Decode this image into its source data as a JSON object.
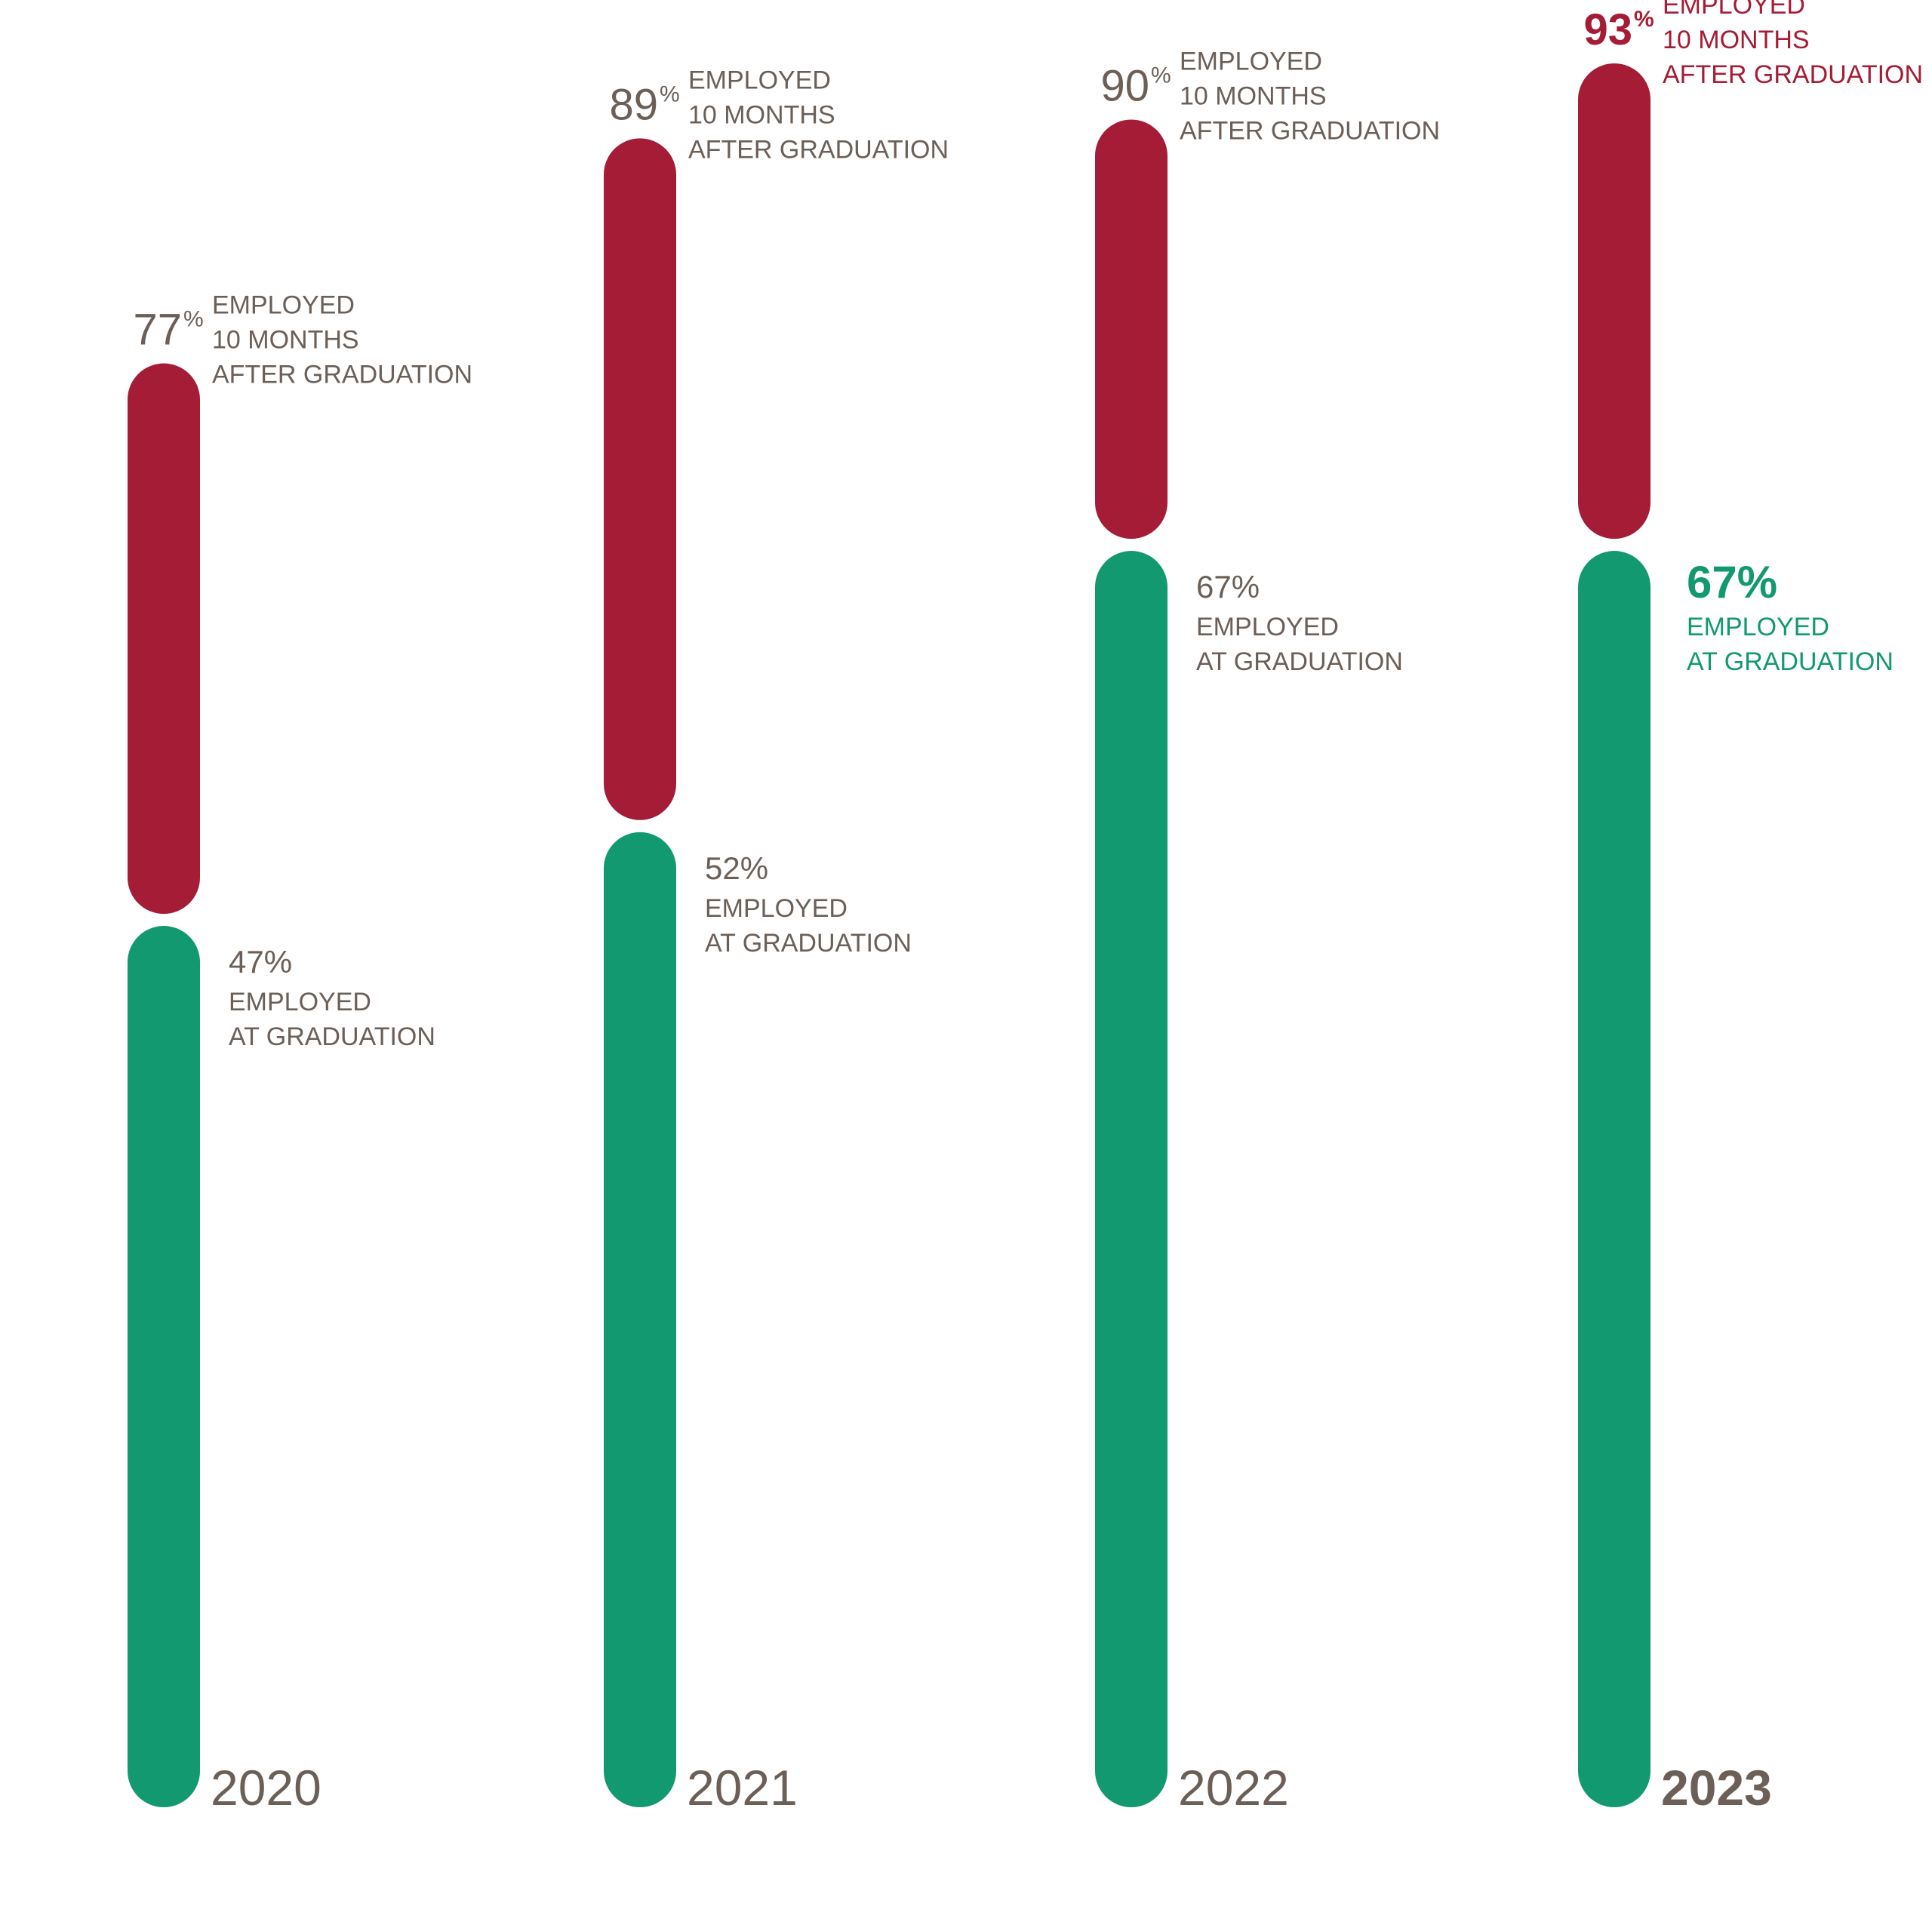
{
  "colors": {
    "after": "#a51c36",
    "at": "#129970",
    "text": "#6b5f57",
    "background": "#ffffff"
  },
  "chart_data": {
    "type": "bar",
    "title": "",
    "xlabel": "",
    "ylabel": "",
    "ylim": [
      0,
      100
    ],
    "categories": [
      "2020",
      "2021",
      "2022",
      "2023"
    ],
    "series": [
      {
        "name": "EMPLOYED AT GRADUATION",
        "values": [
          47,
          52,
          67,
          67
        ],
        "labels": [
          "47%",
          "52%",
          "67%",
          "67%"
        ]
      },
      {
        "name": "EMPLOYED 10 MONTHS AFTER GRADUATION",
        "values": [
          77,
          89,
          90,
          93
        ],
        "labels": [
          "77%",
          "89%",
          "90%",
          "93%"
        ]
      }
    ],
    "highlight": "2023"
  }
}
